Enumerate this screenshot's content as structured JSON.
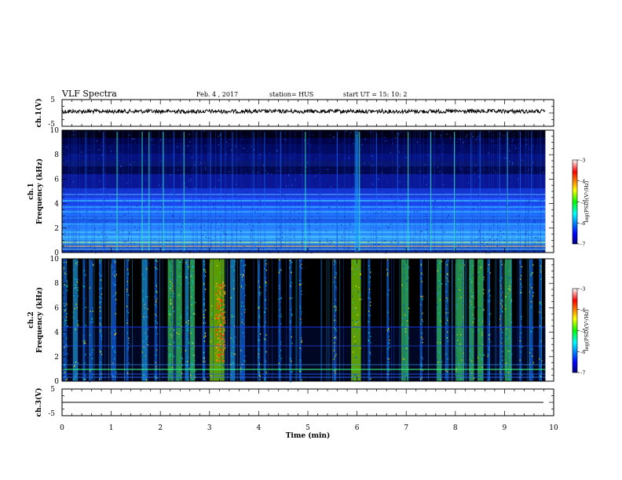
{
  "header": {
    "title": "VLF Spectra",
    "date": "Feb. 4 , 2017",
    "station": "station= HUS",
    "start_ut": "start  UT =   15: 10: 2"
  },
  "chart_data": [
    {
      "type": "line",
      "panel": "ch1-waveform",
      "ylabel": "ch.1(V)",
      "yticks": [
        "5",
        "-5"
      ],
      "ylim": [
        -5,
        5
      ],
      "xlim": [
        0,
        10
      ],
      "trace_end_min": 9.83
    },
    {
      "type": "heatmap",
      "panel": "ch1-spectrogram",
      "ylabel_line1": "ch.1",
      "ylabel_line2": "Frequency (kHz)",
      "yticks": [
        "0",
        "2",
        "4",
        "6",
        "8",
        "10"
      ],
      "ylim": [
        0,
        10
      ],
      "xlim": [
        0,
        10
      ],
      "data_end_min": 9.83,
      "colorbar": {
        "label": "log(PSD)(V²/Hz)",
        "ticks": [
          "-3",
          "-4",
          "-5",
          "-6",
          "-7"
        ],
        "range": [
          -7,
          -3
        ]
      }
    },
    {
      "type": "heatmap",
      "panel": "ch2-spectrogram",
      "ylabel_line1": "ch.2",
      "ylabel_line2": "Frequency (kHz)",
      "yticks": [
        "0",
        "2",
        "4",
        "6",
        "8",
        "10"
      ],
      "ylim": [
        0,
        10
      ],
      "xlim": [
        0,
        10
      ],
      "data_end_min": 9.83,
      "colorbar": {
        "label": "log(PSD)(V²/Hz)",
        "ticks": [
          "-3",
          "-4",
          "-5",
          "-6",
          "-7"
        ],
        "range": [
          -7,
          -3
        ]
      }
    },
    {
      "type": "line",
      "panel": "ch3-waveform",
      "ylabel": "ch.3(V)",
      "yticks": [
        "5",
        "-5"
      ],
      "ylim": [
        -5,
        5
      ],
      "xlim": [
        0,
        10
      ],
      "trace_end_min": 9.83,
      "xlabel": "Time  (min)",
      "xticks": [
        "0",
        "1",
        "2",
        "3",
        "4",
        "5",
        "6",
        "7",
        "8",
        "9",
        "10"
      ]
    }
  ],
  "colors": {
    "background": "#ffffff",
    "axis": "#000000"
  }
}
